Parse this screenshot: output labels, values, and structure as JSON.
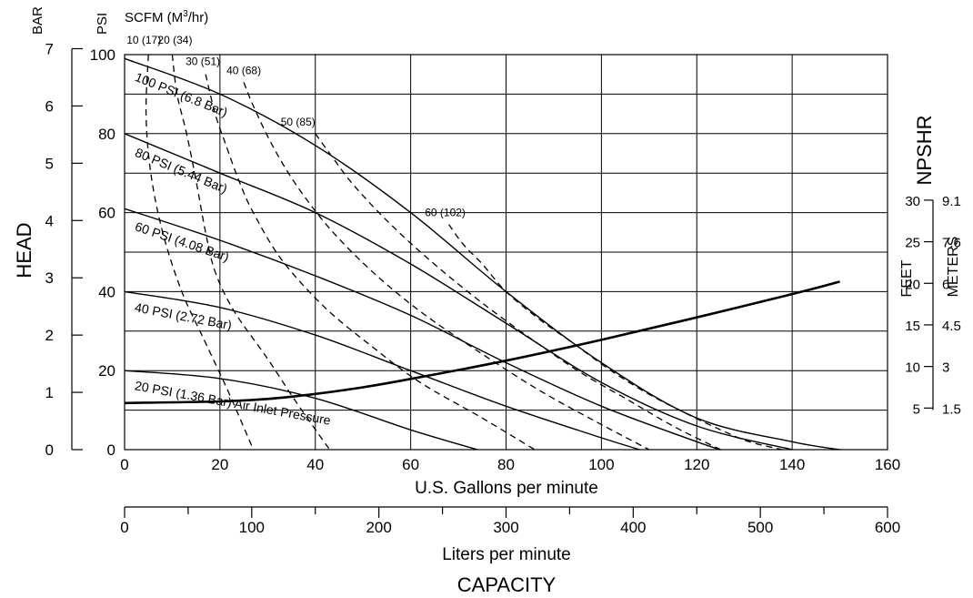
{
  "chart_data": {
    "type": "line",
    "title": "",
    "xlabel": "U.S. Gallons per minute",
    "xlim": [
      0,
      160
    ],
    "x_ticks": [
      "0",
      "20",
      "40",
      "60",
      "80",
      "100",
      "120",
      "140",
      "160"
    ],
    "x2label": "Liters per minute",
    "x2lim": [
      0,
      600
    ],
    "x2_ticks": [
      "0",
      "100",
      "200",
      "300",
      "400",
      "500",
      "600"
    ],
    "capacity_label": "CAPACITY",
    "head_label": "HEAD",
    "unit_bar": "BAR",
    "unit_psi": "PSI",
    "unit_scfm": "SCFM (M",
    "unit_scfm_sup": "3",
    "unit_scfm_end": "/hr)",
    "ylim": [
      0,
      100
    ],
    "psi_ticks": [
      "0",
      "20",
      "40",
      "60",
      "80",
      "100"
    ],
    "bar_ticks": [
      "0",
      "1",
      "2",
      "3",
      "4",
      "5",
      "6",
      "7"
    ],
    "npshr_label": "NPSHR",
    "npsh_feet_label": "FEET",
    "npsh_meters_label": "METERS",
    "npsh_feet_ticks": [
      "5",
      "10",
      "15",
      "20",
      "25",
      "30"
    ],
    "npsh_meter_ticks": [
      "1.5",
      "3",
      "4.5",
      "6",
      "7.6",
      "9.1"
    ],
    "series": [
      {
        "name": "100 PSI (6.8 Bar)",
        "x": [
          0,
          20,
          40,
          60,
          80,
          100,
          120,
          140,
          150
        ],
        "y": [
          99,
          90,
          77,
          60,
          40,
          22,
          8,
          2,
          0
        ]
      },
      {
        "name": "80 PSI (5.44 Bar)",
        "x": [
          0,
          20,
          40,
          60,
          80,
          100,
          120,
          140
        ],
        "y": [
          80,
          70,
          60,
          47,
          32,
          17,
          6,
          0
        ]
      },
      {
        "name": "60 PSI (4.08 Bar)",
        "x": [
          0,
          20,
          40,
          60,
          80,
          100,
          120,
          125
        ],
        "y": [
          61,
          53,
          44,
          34,
          22,
          11,
          2,
          0
        ]
      },
      {
        "name": "40 PSI (2.72 Bar)",
        "x": [
          0,
          20,
          40,
          60,
          80,
          100,
          108
        ],
        "y": [
          40,
          36,
          29,
          20,
          11,
          3,
          0
        ]
      },
      {
        "name": "20 PSI (1.36 Bar) Air Inlet Pressure",
        "x": [
          0,
          20,
          40,
          60,
          74
        ],
        "y": [
          20,
          18,
          13,
          5,
          0
        ]
      }
    ],
    "air_consumption": [
      {
        "label": "10 (17)",
        "x": [
          5,
          4.5,
          5.5,
          8,
          12,
          17,
          22,
          27
        ],
        "y": [
          100,
          85,
          70,
          55,
          40,
          27,
          14,
          0
        ]
      },
      {
        "label": "20 (34)",
        "x": [
          10,
          11,
          13,
          15,
          17,
          19,
          23,
          30,
          36,
          43
        ],
        "y": [
          100,
          90,
          80,
          68,
          55,
          45,
          35,
          23,
          12,
          0
        ]
      },
      {
        "label": "30 (51)",
        "x": [
          17,
          19,
          21,
          24,
          27,
          33,
          42,
          52,
          62,
          75,
          86
        ],
        "y": [
          95,
          85,
          78,
          68,
          60,
          48,
          36,
          26,
          17,
          8,
          0
        ]
      },
      {
        "label": "40 (68)",
        "x": [
          25,
          27,
          31,
          36,
          43,
          52,
          62,
          74,
          87,
          99,
          110
        ],
        "y": [
          93,
          87,
          77,
          67,
          56,
          45,
          35,
          25,
          15,
          7,
          0
        ]
      },
      {
        "label": "50 (85)",
        "x": [
          40,
          43,
          48,
          55,
          63,
          73,
          83,
          95,
          105,
          115,
          125
        ],
        "y": [
          80,
          75,
          67,
          58,
          49,
          39,
          30,
          20,
          13,
          6,
          0
        ]
      },
      {
        "label": "60 (102)",
        "x": [
          68,
          71,
          75,
          80,
          87,
          94,
          102,
          110,
          118,
          125,
          131,
          138
        ],
        "y": [
          57,
          52,
          47,
          40,
          33,
          27,
          20,
          14,
          9,
          5,
          2,
          0
        ]
      }
    ],
    "npshr": {
      "x": [
        0,
        20,
        30,
        40,
        50,
        60,
        80,
        100,
        120,
        140,
        150
      ],
      "feet": [
        5.6,
        5.8,
        6.1,
        6.7,
        7.5,
        8.5,
        10.7,
        13.2,
        15.9,
        18.7,
        20.2
      ]
    },
    "grid": true
  }
}
